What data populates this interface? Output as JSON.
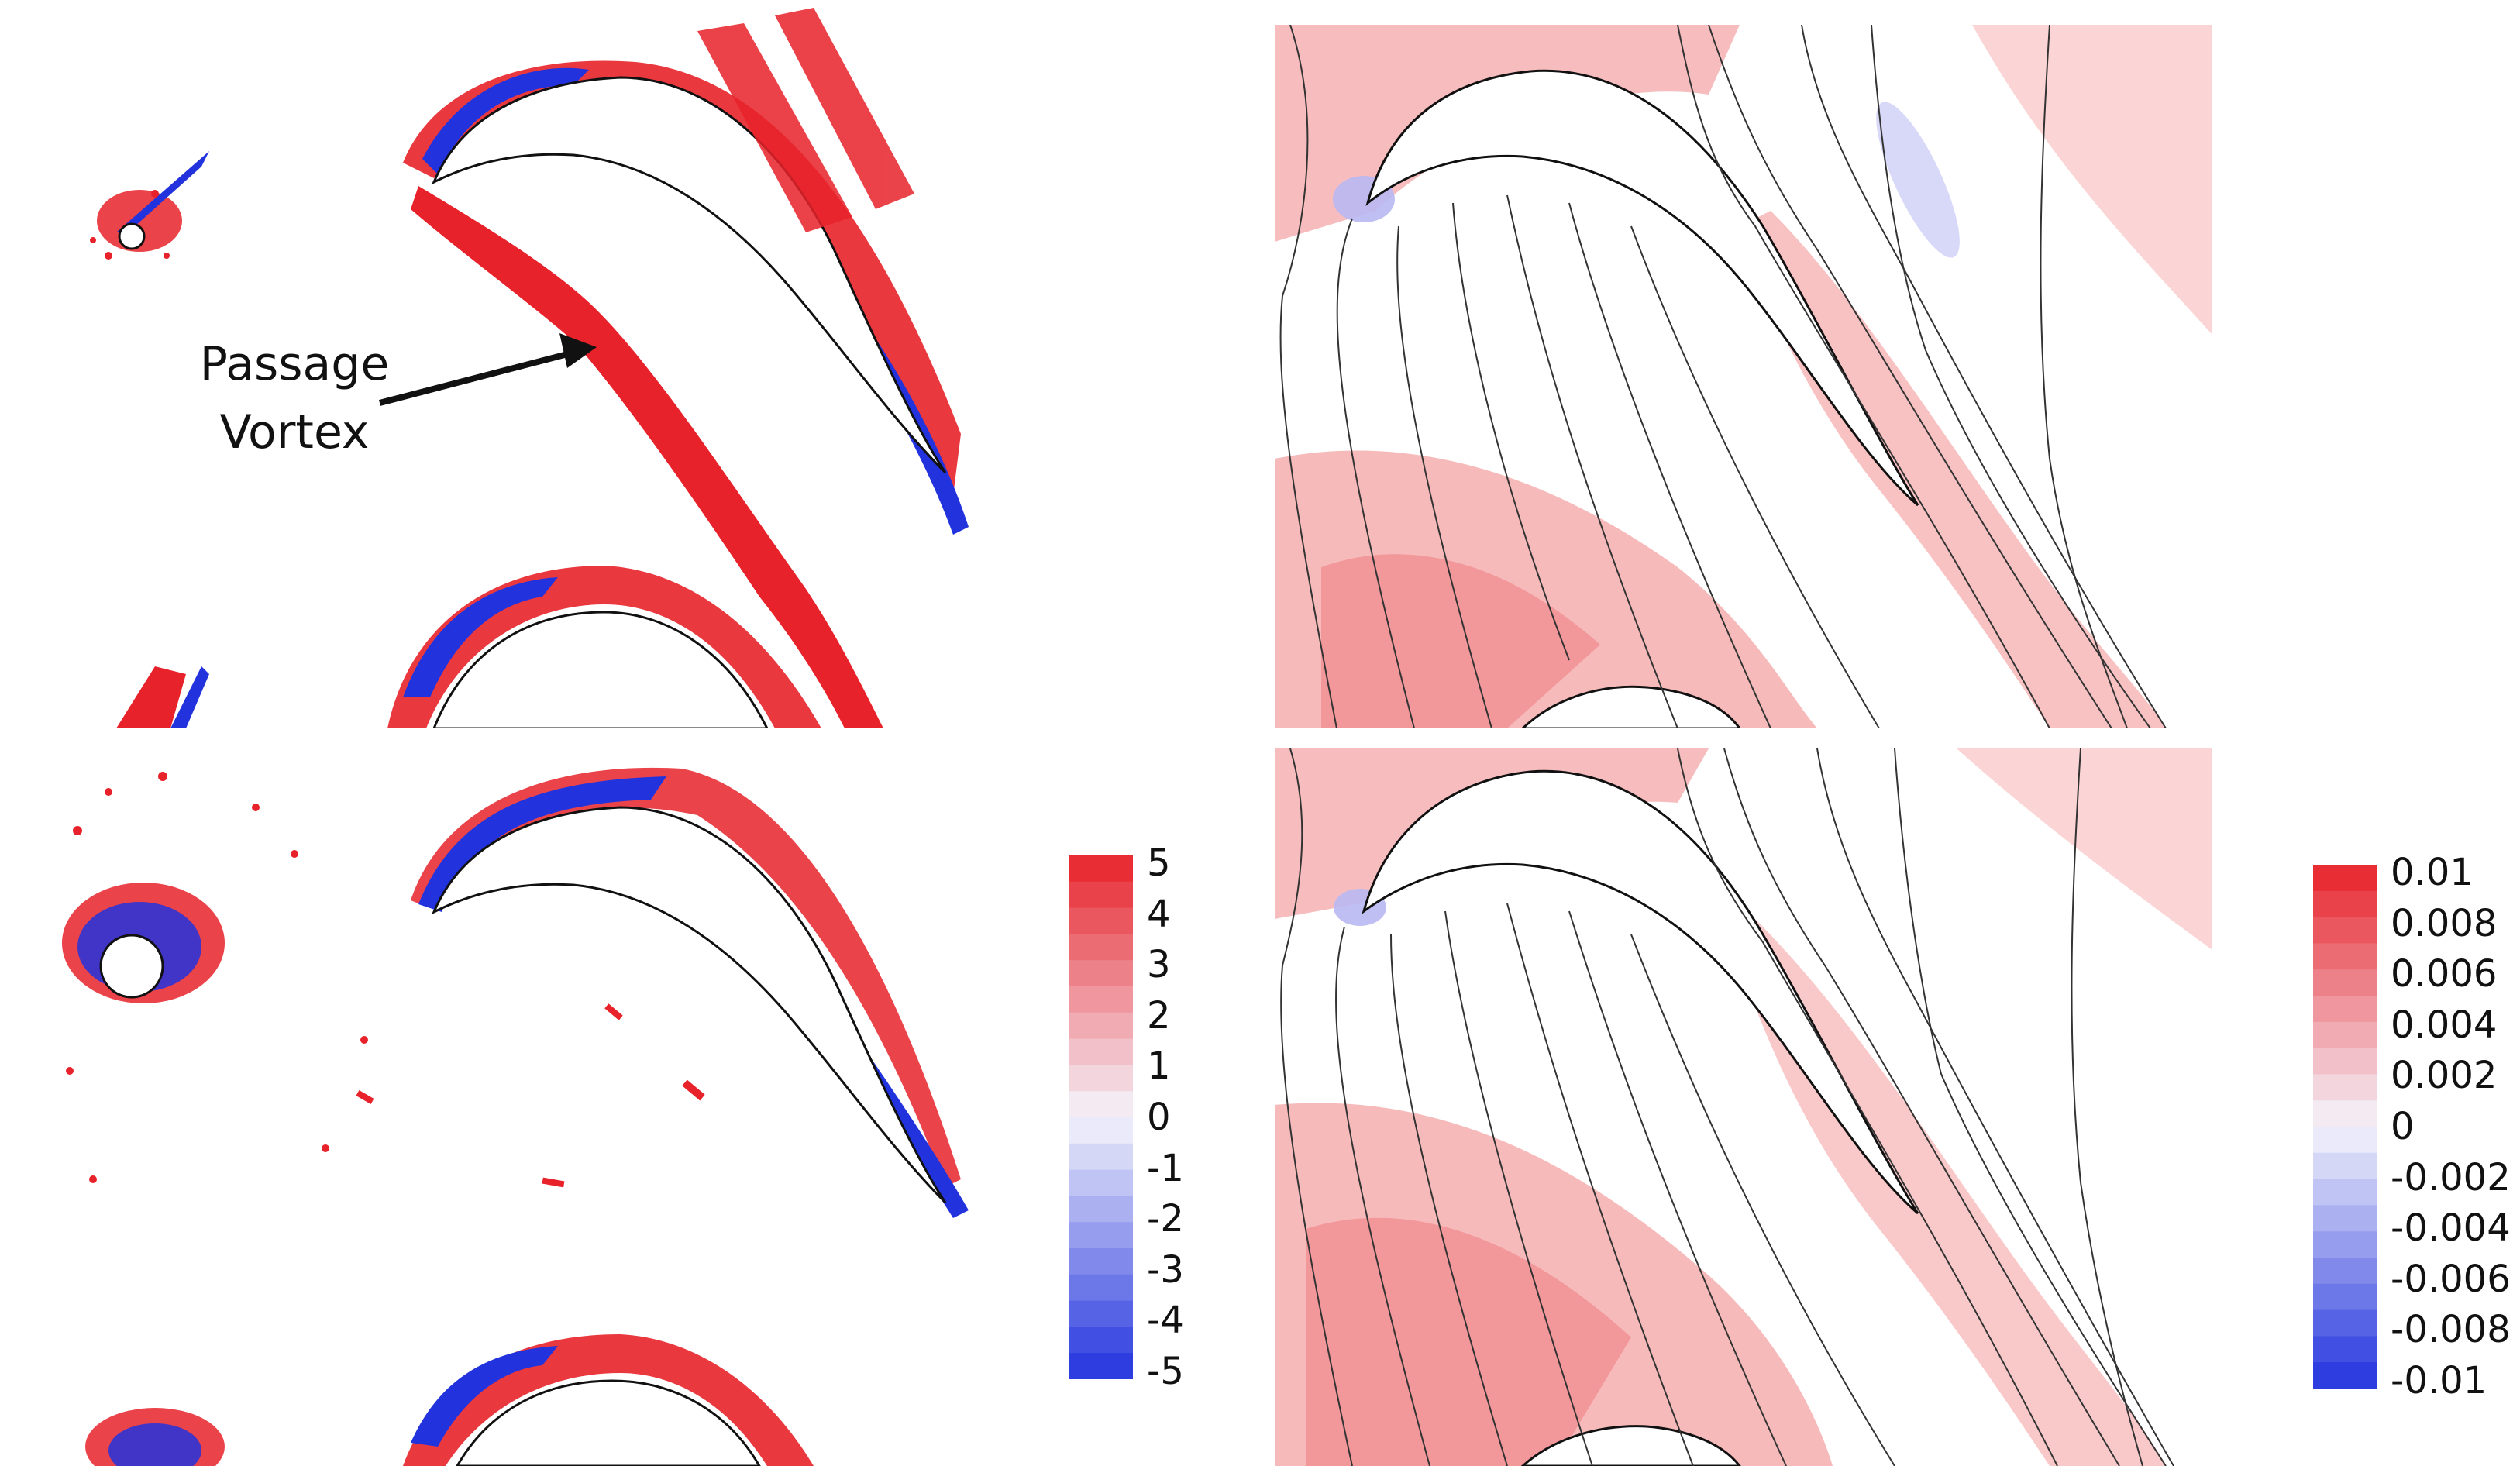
{
  "annotation": {
    "line1": "Passage",
    "line2": "Vortex"
  },
  "colors": {
    "positive": "#e8222a",
    "negative": "#2233dd",
    "contour_light": "#fbd5d5",
    "contour_mid": "#f6b2b3",
    "contour_strong": "#f08f92",
    "blade_outline": "#111111"
  },
  "colorbar_left": {
    "labels": [
      "5",
      "4",
      "3",
      "2",
      "1",
      "0",
      "-1",
      "-2",
      "-3",
      "-4",
      "-5"
    ],
    "max": 5,
    "min": -5
  },
  "colorbar_right": {
    "labels": [
      "0.01",
      "0.008",
      "0.006",
      "0.004",
      "0.002",
      "0",
      "-0.002",
      "-0.004",
      "-0.006",
      "-0.008",
      "-0.01"
    ],
    "max": 0.01,
    "min": -0.01
  }
}
